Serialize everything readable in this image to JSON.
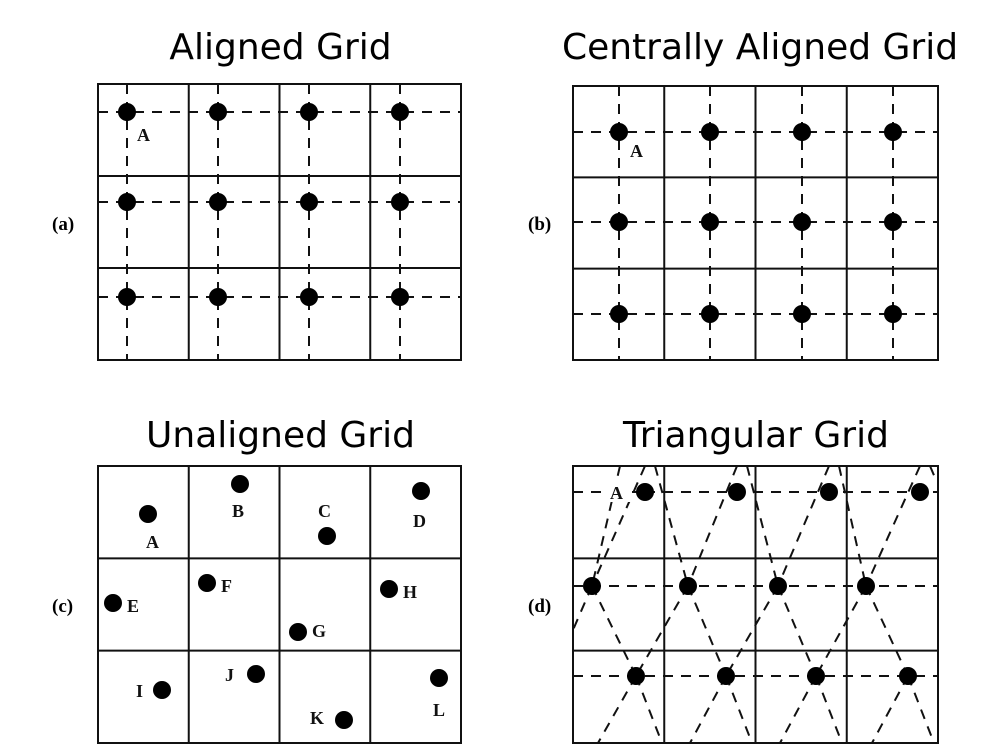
{
  "panels": [
    {
      "key": "a",
      "title": "Aligned Grid",
      "label": "(a)",
      "point_label": "A"
    },
    {
      "key": "b",
      "title": "Centrally Aligned Grid",
      "label": "(b)",
      "point_label": "A"
    },
    {
      "key": "c",
      "title": "Unaligned Grid",
      "label": "(c)",
      "point_labels": [
        "A",
        "B",
        "C",
        "D",
        "E",
        "F",
        "G",
        "H",
        "I",
        "J",
        "K",
        "L"
      ]
    },
    {
      "key": "d",
      "title": "Triangular Grid",
      "label": "(d)",
      "point_label": "A"
    }
  ],
  "colors": {
    "line": "#111111",
    "point": "#000000",
    "background": "#ffffff"
  }
}
